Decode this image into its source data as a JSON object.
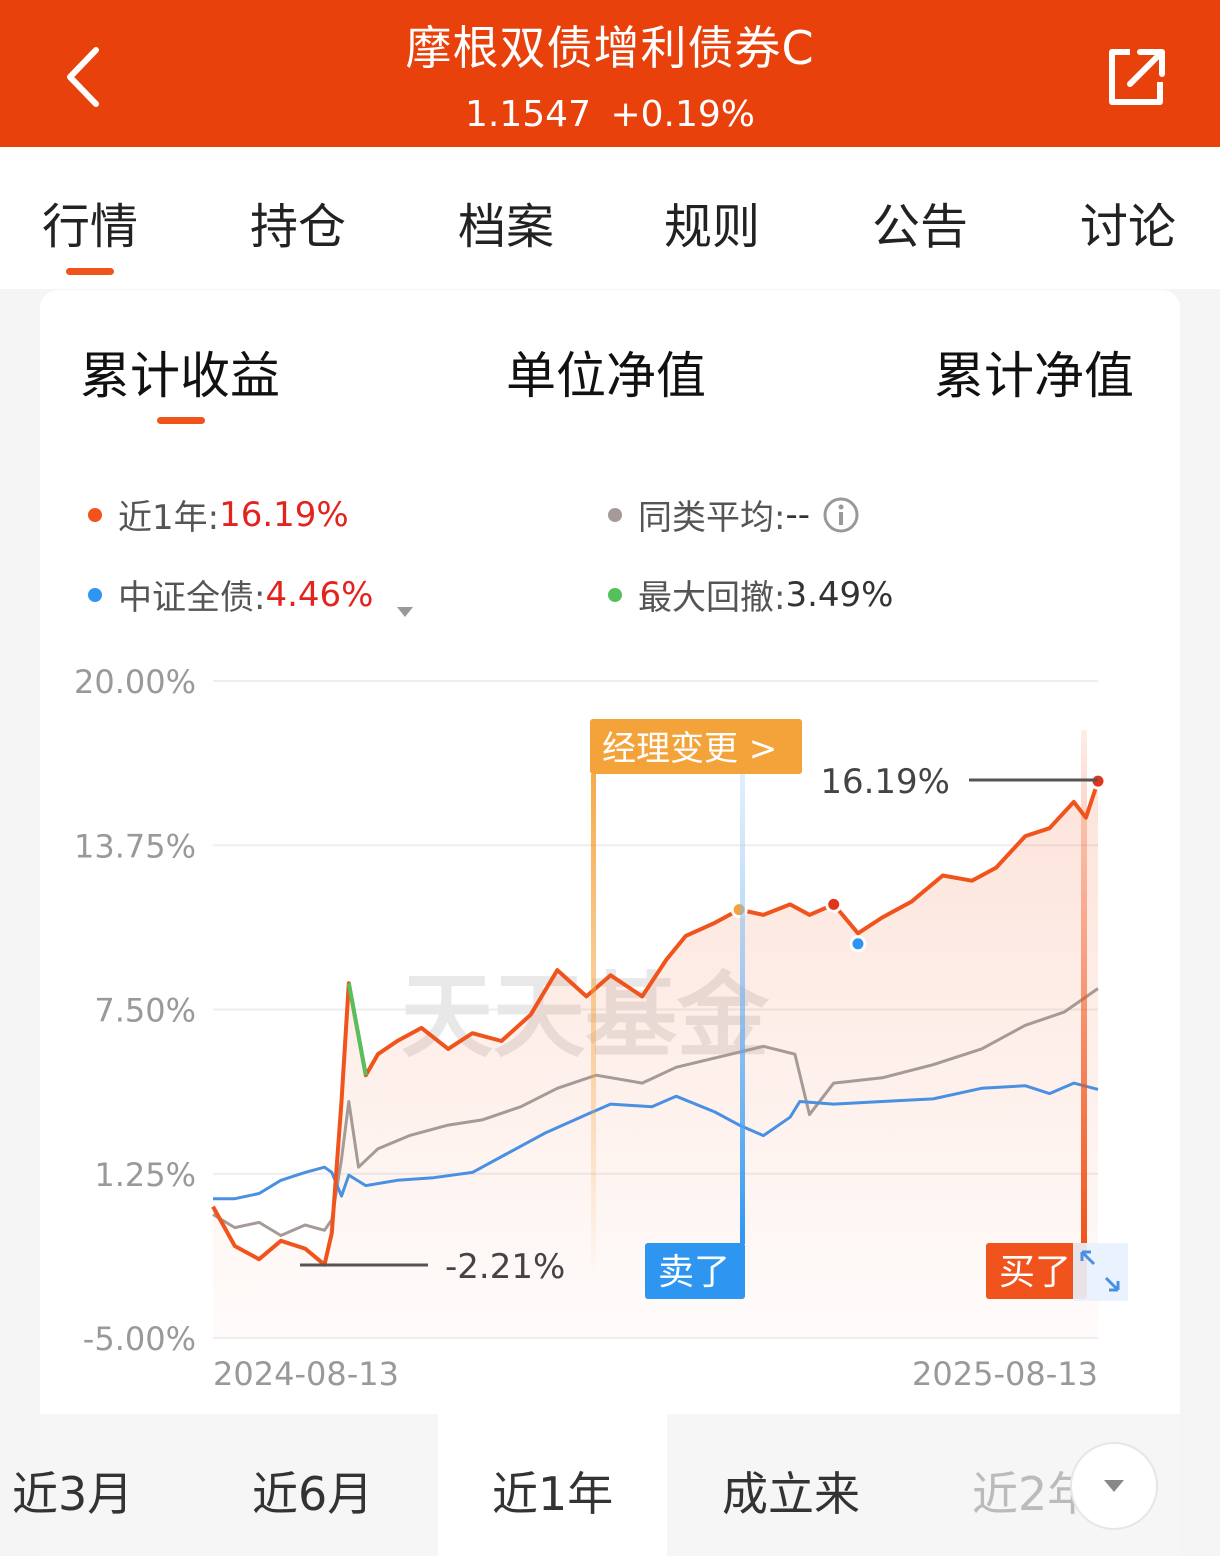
{
  "header": {
    "title": "摩根双债增利债券C",
    "nav": "1.1547",
    "change": "+0.19%"
  },
  "tabs": [
    "行情",
    "持仓",
    "档案",
    "规则",
    "公告",
    "讨论"
  ],
  "sub_tabs": [
    "累计收益",
    "单位净值",
    "累计净值"
  ],
  "legend": {
    "year_label": "近1年:",
    "year_value": "16.19%",
    "peer_label": "同类平均:",
    "peer_value": "--",
    "bench_label": "中证全债:",
    "bench_value": "4.46%",
    "dd_label": "最大回撤:",
    "dd_value": "3.49%"
  },
  "annotations": {
    "manager_change": "经理变更 >",
    "sell": "卖了",
    "buy": "买了",
    "end_value": "16.19%",
    "min_value": "-2.21%"
  },
  "watermark": "天天基金",
  "colors": {
    "fund": "#f0531b",
    "peer": "#a59a97",
    "bench": "#4a90e2",
    "drawdown": "#54c15c",
    "header": "#e8410b",
    "manager_tag": "#f4a23a",
    "sell_tag": "#2e95f1",
    "buy_tag": "#f0531b"
  },
  "periods": [
    "近3月",
    "近6月",
    "近1年",
    "成立来",
    "近2年"
  ],
  "chart_data": {
    "type": "line",
    "x_start": "2024-08-13",
    "x_end": "2025-08-13",
    "xticks": [
      "2024-08-13",
      "2025-08-13"
    ],
    "yticks": [
      "20.00%",
      "13.75%",
      "7.50%",
      "1.25%",
      "-5.00%"
    ],
    "ylim": [
      -5.0,
      20.0
    ],
    "series": [
      {
        "name": "近1年",
        "x": [
          "2024-08-13",
          "2024-08-22",
          "2024-09-01",
          "2024-09-10",
          "2024-09-20",
          "2024-09-28",
          "2024-10-01",
          "2024-10-05",
          "2024-10-08",
          "2024-10-12",
          "2024-10-15",
          "2024-10-20",
          "2024-10-28",
          "2024-11-07",
          "2024-11-18",
          "2024-11-28",
          "2024-12-10",
          "2024-12-22",
          "2025-01-02",
          "2025-01-14",
          "2025-01-24",
          "2025-02-06",
          "2025-02-16",
          "2025-02-24",
          "2025-03-08",
          "2025-03-18",
          "2025-03-28",
          "2025-04-08",
          "2025-04-16",
          "2025-04-26",
          "2025-05-06",
          "2025-05-16",
          "2025-05-28",
          "2025-06-10",
          "2025-06-22",
          "2025-07-02",
          "2025-07-14",
          "2025-07-24",
          "2025-08-03",
          "2025-08-08",
          "2025-08-13"
        ],
        "y": [
          0.0,
          -1.5,
          -2.0,
          -1.3,
          -1.6,
          -2.21,
          -1.0,
          4.0,
          8.5,
          6.5,
          5.0,
          5.8,
          6.3,
          6.8,
          6.0,
          6.6,
          6.3,
          7.3,
          9.0,
          8.0,
          8.8,
          8.0,
          9.4,
          10.3,
          10.8,
          11.3,
          11.1,
          11.5,
          11.1,
          11.5,
          10.4,
          11.0,
          11.6,
          12.6,
          12.4,
          12.9,
          14.1,
          14.4,
          15.4,
          14.8,
          16.19
        ]
      },
      {
        "name": "同类平均",
        "x": [
          "2024-08-13",
          "2024-08-22",
          "2024-09-01",
          "2024-09-10",
          "2024-09-20",
          "2024-09-28",
          "2024-10-01",
          "2024-10-05",
          "2024-10-08",
          "2024-10-12",
          "2024-10-20",
          "2024-11-02",
          "2024-11-18",
          "2024-12-02",
          "2024-12-18",
          "2025-01-02",
          "2025-01-18",
          "2025-02-06",
          "2025-02-20",
          "2025-03-10",
          "2025-03-28",
          "2025-04-10",
          "2025-04-16",
          "2025-04-26",
          "2025-05-16",
          "2025-06-06",
          "2025-06-26",
          "2025-07-14",
          "2025-07-30",
          "2025-08-13"
        ],
        "y": [
          -0.3,
          -0.8,
          -0.6,
          -1.1,
          -0.7,
          -0.9,
          -0.5,
          1.8,
          4.0,
          1.5,
          2.2,
          2.7,
          3.1,
          3.3,
          3.8,
          4.5,
          5.0,
          4.7,
          5.3,
          5.7,
          6.1,
          5.8,
          3.5,
          4.7,
          4.9,
          5.4,
          6.0,
          6.9,
          7.4,
          8.3
        ]
      },
      {
        "name": "中证全债",
        "x": [
          "2024-08-13",
          "2024-08-22",
          "2024-09-01",
          "2024-09-10",
          "2024-09-20",
          "2024-09-28",
          "2024-10-01",
          "2024-10-05",
          "2024-10-08",
          "2024-10-15",
          "2024-10-28",
          "2024-11-12",
          "2024-11-28",
          "2024-12-12",
          "2024-12-28",
          "2025-01-14",
          "2025-01-24",
          "2025-02-10",
          "2025-02-20",
          "2025-03-08",
          "2025-03-18",
          "2025-03-28",
          "2025-04-08",
          "2025-04-12",
          "2025-04-26",
          "2025-05-16",
          "2025-06-06",
          "2025-06-26",
          "2025-07-14",
          "2025-07-24",
          "2025-08-03",
          "2025-08-13"
        ],
        "y": [
          0.3,
          0.3,
          0.5,
          1.0,
          1.3,
          1.5,
          1.3,
          0.4,
          1.2,
          0.8,
          1.0,
          1.1,
          1.3,
          2.0,
          2.8,
          3.5,
          3.9,
          3.8,
          4.2,
          3.6,
          3.1,
          2.7,
          3.4,
          4.0,
          3.9,
          4.0,
          4.1,
          4.5,
          4.6,
          4.3,
          4.7,
          4.46
        ]
      }
    ],
    "drawdown_segment": {
      "name": "最大回撤",
      "x": [
        "2024-10-08",
        "2024-10-15"
      ],
      "y": [
        8.5,
        5.0
      ]
    }
  }
}
